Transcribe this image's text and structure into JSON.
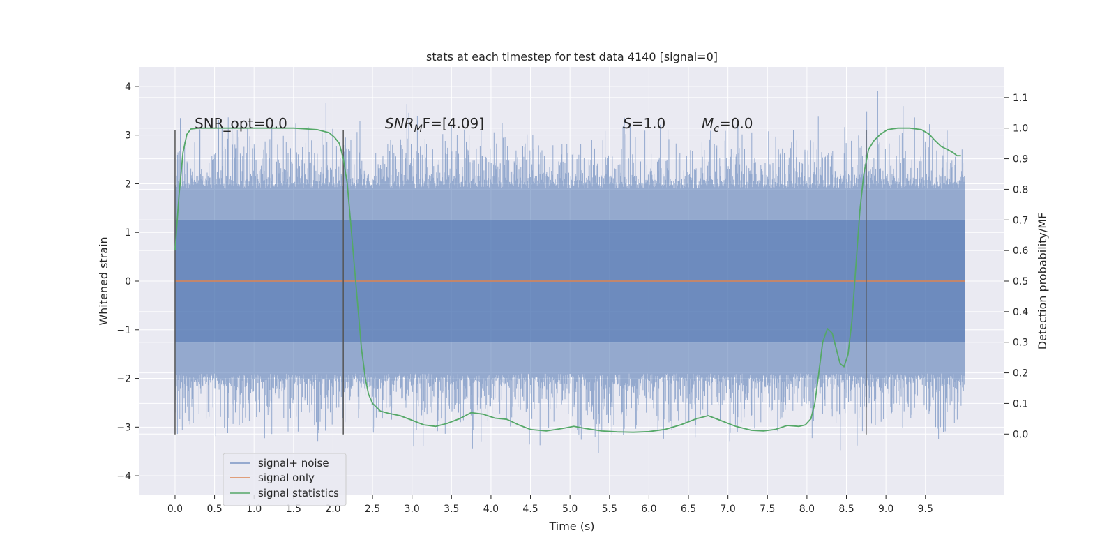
{
  "chart_data": {
    "type": "line",
    "title": "stats at each timestep for test data 4140 [signal=0]",
    "xlabel": "Time (s)",
    "ylabel": "Whitened strain",
    "ylabel_right": "Detection probability/MF",
    "xlim": [
      -0.45,
      10.5
    ],
    "ylim": [
      -4.4,
      4.4
    ],
    "ylim_right": [
      -0.2,
      1.2
    ],
    "xticks": [
      0.0,
      0.5,
      1.0,
      1.5,
      2.0,
      2.5,
      3.0,
      3.5,
      4.0,
      4.5,
      5.0,
      5.5,
      6.0,
      6.5,
      7.0,
      7.5,
      8.0,
      8.5,
      9.0,
      9.5
    ],
    "yticks": [
      -4,
      -3,
      -2,
      -1,
      0,
      1,
      2,
      3,
      4
    ],
    "yticks_right": [
      0.0,
      0.1,
      0.2,
      0.3,
      0.4,
      0.5,
      0.6,
      0.7,
      0.8,
      0.9,
      1.0,
      1.1
    ],
    "grid": true,
    "legend_position": "lower-left",
    "annotations": {
      "snr_opt": "SNR_opt=0.0",
      "snr_mf_base": "SNR",
      "snr_mf_sub": "M",
      "snr_mf_tail": "F=[4.09]",
      "s_sym": "S",
      "s_val": "=1.0",
      "mc_sym": "M",
      "mc_sub": "c",
      "mc_val": "=0.0"
    },
    "vertical_lines_x": [
      0.0,
      2.13,
      8.75
    ],
    "vertical_lines_ylim": [
      -3.15,
      3.1
    ],
    "series": [
      {
        "name": "signal+ noise",
        "color": "#4c72b0",
        "render": "noise",
        "x_range": [
          0.0,
          10.0
        ],
        "envelope_typical": 1.9,
        "envelope_max": 4.0,
        "envelope_min": -4.05
      },
      {
        "name": "signal only",
        "color": "#dd8452",
        "x": [
          0.0,
          10.0
        ],
        "y": [
          0.0,
          0.0
        ]
      },
      {
        "name": "signal statistics",
        "color": "#55a868",
        "axis": "right",
        "x": [
          0.0,
          0.05,
          0.1,
          0.15,
          0.2,
          0.3,
          0.5,
          1.0,
          1.5,
          1.8,
          1.95,
          2.02,
          2.08,
          2.13,
          2.18,
          2.22,
          2.27,
          2.32,
          2.36,
          2.41,
          2.45,
          2.5,
          2.6,
          2.7,
          2.85,
          3.0,
          3.15,
          3.3,
          3.45,
          3.6,
          3.75,
          3.9,
          4.05,
          4.2,
          4.35,
          4.5,
          4.7,
          4.9,
          5.05,
          5.2,
          5.4,
          5.6,
          5.8,
          6.0,
          6.2,
          6.4,
          6.6,
          6.75,
          6.9,
          7.1,
          7.3,
          7.45,
          7.6,
          7.75,
          7.9,
          7.98,
          8.05,
          8.1,
          8.15,
          8.2,
          8.26,
          8.32,
          8.37,
          8.42,
          8.47,
          8.52,
          8.57,
          8.62,
          8.67,
          8.72,
          8.78,
          8.85,
          8.93,
          9.02,
          9.15,
          9.3,
          9.45,
          9.55,
          9.62,
          9.7,
          9.78,
          9.85,
          9.9,
          9.95
        ],
        "y": [
          0.6,
          0.78,
          0.92,
          0.98,
          0.997,
          1.0,
          1.0,
          1.0,
          1.0,
          0.995,
          0.985,
          0.97,
          0.95,
          0.9,
          0.82,
          0.7,
          0.55,
          0.4,
          0.28,
          0.18,
          0.13,
          0.1,
          0.075,
          0.068,
          0.06,
          0.045,
          0.03,
          0.025,
          0.035,
          0.05,
          0.07,
          0.065,
          0.052,
          0.048,
          0.03,
          0.015,
          0.01,
          0.018,
          0.025,
          0.018,
          0.01,
          0.007,
          0.006,
          0.008,
          0.015,
          0.03,
          0.05,
          0.06,
          0.045,
          0.025,
          0.012,
          0.01,
          0.015,
          0.028,
          0.025,
          0.03,
          0.05,
          0.1,
          0.2,
          0.3,
          0.345,
          0.33,
          0.28,
          0.23,
          0.22,
          0.26,
          0.37,
          0.55,
          0.73,
          0.85,
          0.93,
          0.96,
          0.98,
          0.995,
          1.0,
          1.0,
          0.995,
          0.98,
          0.96,
          0.94,
          0.93,
          0.92,
          0.91,
          0.91
        ]
      }
    ]
  }
}
